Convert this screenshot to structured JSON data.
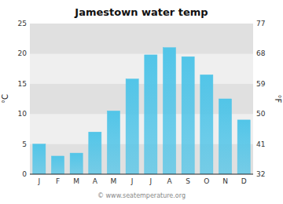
{
  "chart_data": {
    "type": "bar",
    "title": "Jamestown water temp",
    "categories": [
      "J",
      "F",
      "M",
      "A",
      "M",
      "J",
      "J",
      "A",
      "S",
      "O",
      "N",
      "D"
    ],
    "values": [
      5.0,
      3.0,
      3.5,
      7.0,
      10.5,
      15.8,
      19.8,
      21.0,
      19.5,
      16.5,
      12.5,
      9.0
    ],
    "color": "#52c5e8",
    "ylabel": "°C",
    "y2label": "°F",
    "ylim": [
      0,
      25
    ],
    "yticks": [
      0,
      5,
      10,
      15,
      20,
      25
    ],
    "y2lim": [
      32,
      77
    ],
    "y2ticks": [
      32,
      41,
      50,
      59,
      68,
      77
    ],
    "grid": true,
    "annotations": [
      "© www.seatemperature.org"
    ]
  }
}
